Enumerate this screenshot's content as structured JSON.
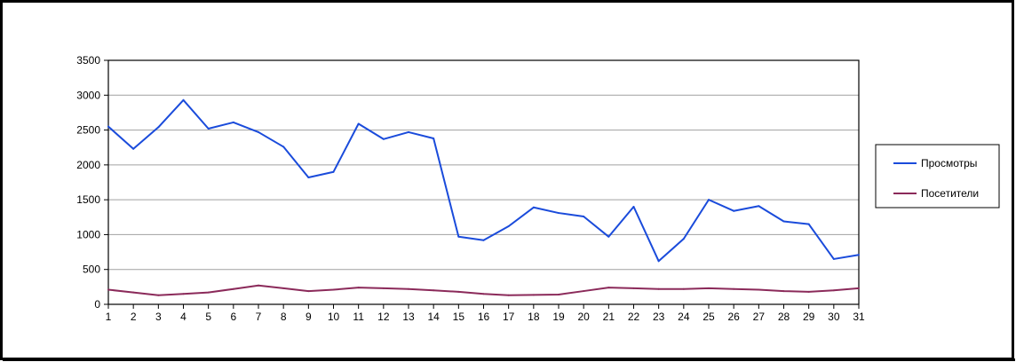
{
  "chart_data": {
    "type": "line",
    "x": [
      1,
      2,
      3,
      4,
      5,
      6,
      7,
      8,
      9,
      10,
      11,
      12,
      13,
      14,
      15,
      16,
      17,
      18,
      19,
      20,
      21,
      22,
      23,
      24,
      25,
      26,
      27,
      28,
      29,
      30,
      31
    ],
    "ylim": [
      0,
      3500
    ],
    "yticks": [
      0,
      500,
      1000,
      1500,
      2000,
      2500,
      3000,
      3500
    ],
    "grid": true,
    "legend_position": "right",
    "series": [
      {
        "name": "Просмотры",
        "color": "#1a4bdb",
        "values": [
          2550,
          2230,
          2540,
          2930,
          2520,
          2610,
          2470,
          2260,
          1820,
          1900,
          2590,
          2370,
          2470,
          2380,
          970,
          920,
          1120,
          1390,
          1310,
          1260,
          970,
          1400,
          620,
          940,
          1500,
          1340,
          1410,
          1190,
          1150,
          650,
          710
        ]
      },
      {
        "name": "Посетители",
        "color": "#8b2a5a",
        "values": [
          210,
          170,
          130,
          150,
          170,
          220,
          270,
          230,
          190,
          210,
          240,
          230,
          220,
          200,
          180,
          150,
          130,
          135,
          140,
          190,
          240,
          230,
          220,
          220,
          230,
          220,
          210,
          190,
          180,
          200,
          230
        ]
      }
    ]
  }
}
